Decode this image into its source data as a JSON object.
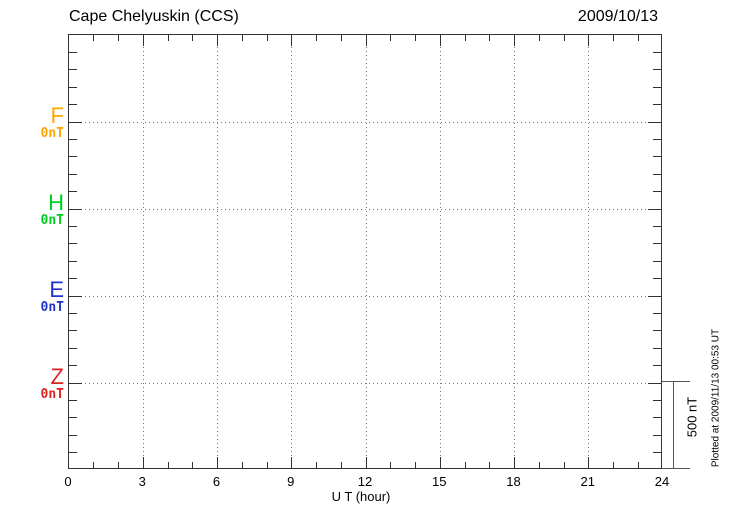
{
  "header": {
    "title": "Cape Chelyuskin (CCS)",
    "date": "2009/10/13"
  },
  "chart_data": {
    "type": "line",
    "title": "Cape Chelyuskin (CCS)",
    "date_shown": "2009/10/13",
    "xlabel": "U T (hour)",
    "xlim": [
      0,
      24
    ],
    "x_tick_labels": [
      "0",
      "3",
      "6",
      "9",
      "12",
      "15",
      "18",
      "21",
      "24"
    ],
    "x_major_step_hours": 3,
    "x_minor_step_hours": 1,
    "grid_vertical_hours": [
      3,
      6,
      9,
      12,
      15,
      18,
      21
    ],
    "grid_style": "dotted",
    "y_minor_tick_nT": 100,
    "row_spacing_nT": 500,
    "components": [
      {
        "name": "F",
        "value_label": "0nT",
        "color": "#FFA500",
        "values": []
      },
      {
        "name": "H",
        "value_label": "0nT",
        "color": "#00CC22",
        "values": []
      },
      {
        "name": "E",
        "value_label": "0nT",
        "color": "#2233CC",
        "values": []
      },
      {
        "name": "Z",
        "value_label": "0nT",
        "color": "#DD2222",
        "values": []
      }
    ],
    "scale_bar": {
      "label": "500 nT"
    },
    "footnote": "Plotted at 2009/11/13 00:53 UT",
    "axis_color": "#333333",
    "grid_color": "#777777",
    "background": "#FFFFFF"
  }
}
